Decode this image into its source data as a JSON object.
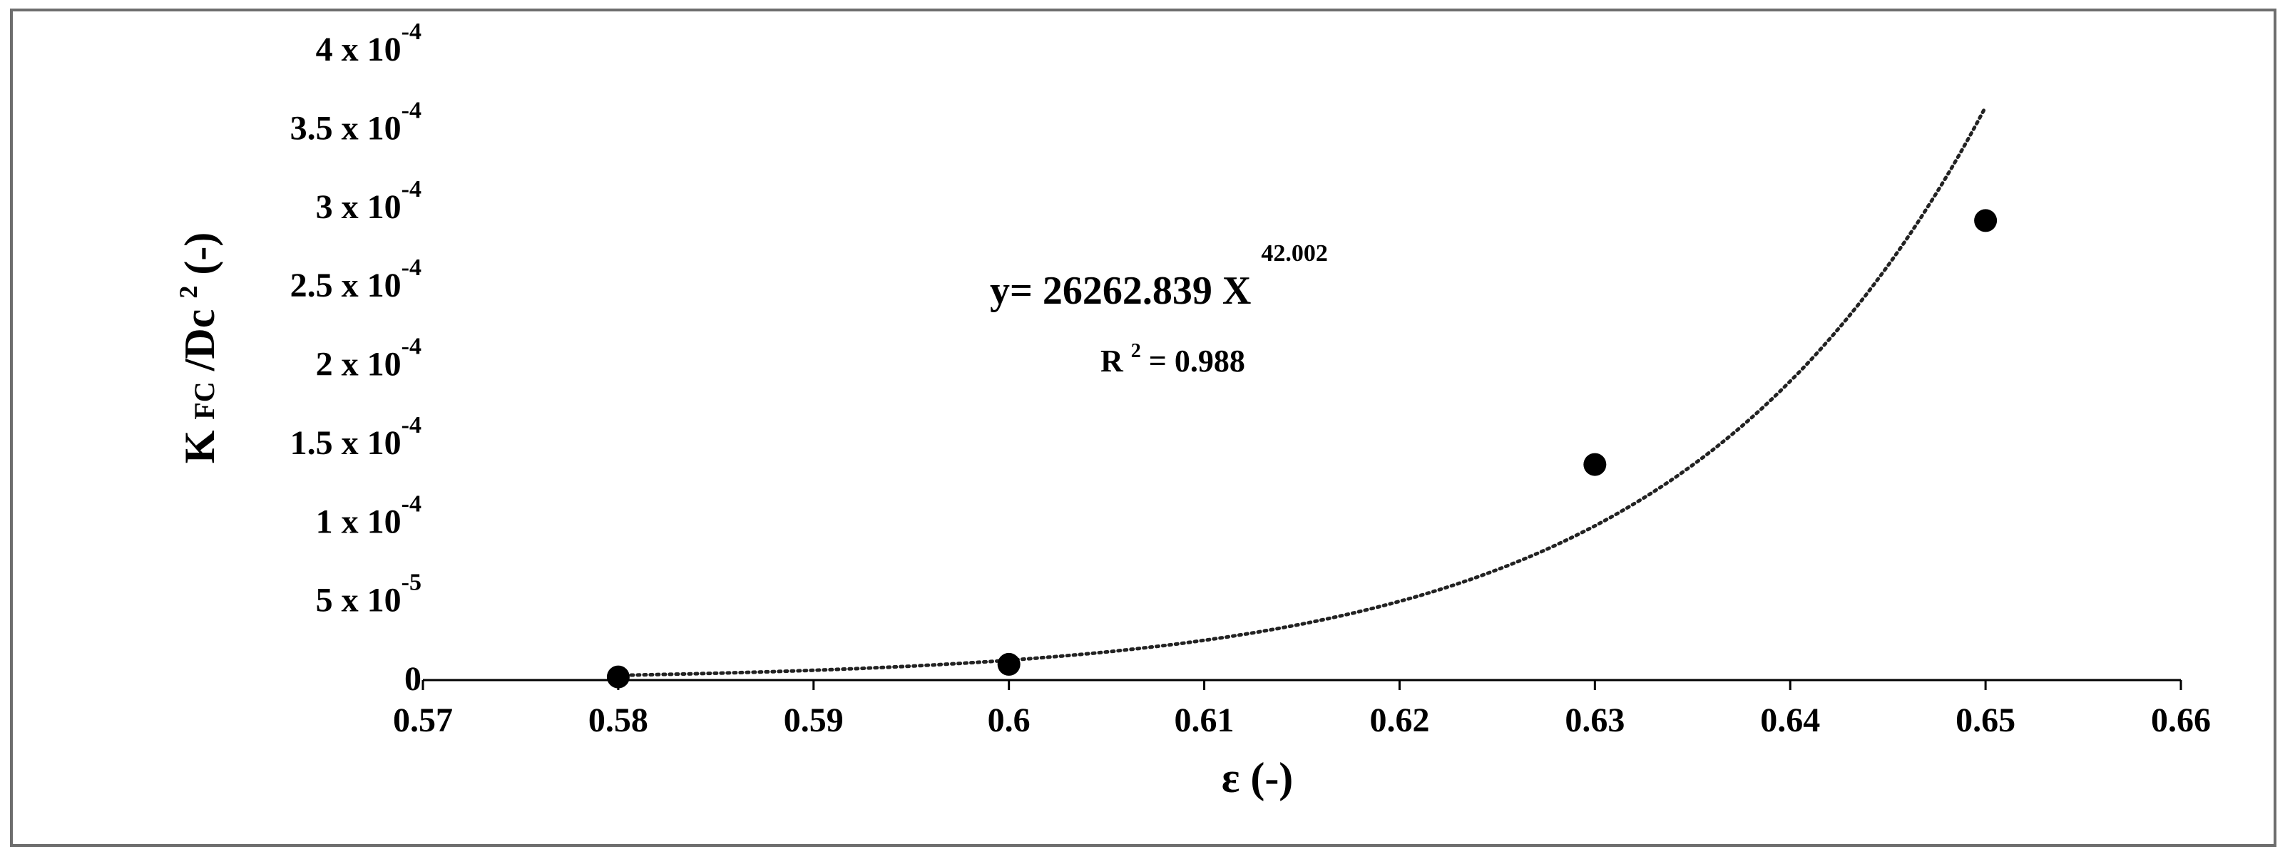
{
  "chart_data": {
    "type": "scatter",
    "xlabel": "ε (-)",
    "ylabel": {
      "main": "K",
      "sub": "FC",
      "mid": "/Dc",
      "sup": "2",
      "end": "(-)"
    },
    "xlim": [
      0.57,
      0.66
    ],
    "ylim": [
      0,
      0.0004
    ],
    "x_ticks": [
      {
        "value": 0.57,
        "label": "0.57"
      },
      {
        "value": 0.58,
        "label": "0.58"
      },
      {
        "value": 0.59,
        "label": "0.59"
      },
      {
        "value": 0.6,
        "label": "0.6"
      },
      {
        "value": 0.61,
        "label": "0.61"
      },
      {
        "value": 0.62,
        "label": "0.62"
      },
      {
        "value": 0.63,
        "label": "0.63"
      },
      {
        "value": 0.64,
        "label": "0.64"
      },
      {
        "value": 0.65,
        "label": "0.65"
      },
      {
        "value": 0.66,
        "label": "0.66"
      }
    ],
    "y_ticks": [
      {
        "value": 0,
        "mant": "0",
        "exp": ""
      },
      {
        "value": 5e-05,
        "mant": "5 x 10",
        "exp": "-5"
      },
      {
        "value": 0.0001,
        "mant": "1 x 10",
        "exp": "-4"
      },
      {
        "value": 0.00015,
        "mant": "1.5 x 10",
        "exp": "-4"
      },
      {
        "value": 0.0002,
        "mant": "2 x 10",
        "exp": "-4"
      },
      {
        "value": 0.00025,
        "mant": "2.5 x 10",
        "exp": "-4"
      },
      {
        "value": 0.0003,
        "mant": "3 x 10",
        "exp": "-4"
      },
      {
        "value": 0.00035,
        "mant": "3.5 x 10",
        "exp": "-4"
      },
      {
        "value": 0.0004,
        "mant": "4 x 10",
        "exp": "-4"
      }
    ],
    "points": [
      {
        "x": 0.58,
        "y": 2e-06
      },
      {
        "x": 0.6,
        "y": 1e-05
      },
      {
        "x": 0.63,
        "y": 0.000137
      },
      {
        "x": 0.65,
        "y": 0.000292
      }
    ],
    "trendline": {
      "type": "power",
      "coefficient": 26262.839,
      "exponent": 42.002,
      "x_range": [
        0.58,
        0.65
      ],
      "style": "dotted"
    },
    "equation": {
      "main": "y= 26262.839 X",
      "sup": "42.002"
    },
    "r_squared": {
      "r": "R",
      "sup": "2",
      "rest": "= 0.988"
    },
    "grid": false
  }
}
